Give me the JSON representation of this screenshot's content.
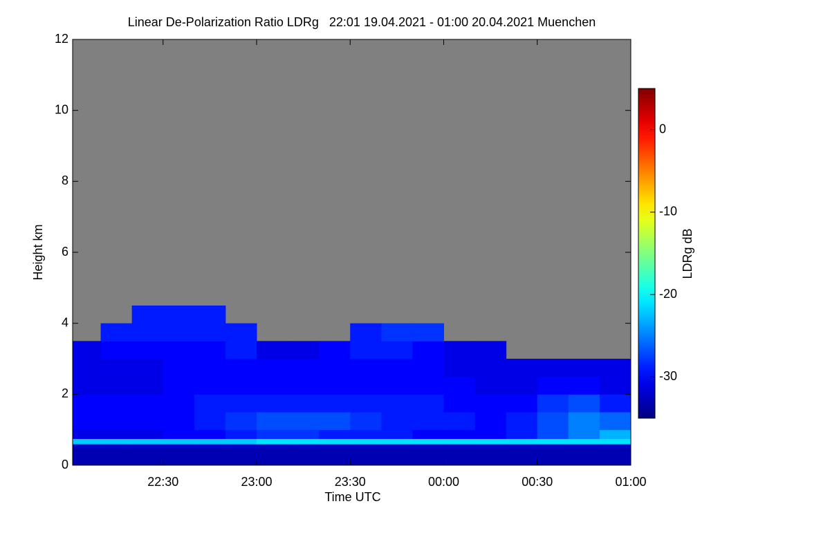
{
  "chart_data": {
    "type": "heatmap",
    "title": "Linear De-Polarization Ratio LDRg   22:01 19.04.2021 - 01:00 20.04.2021 Muenchen",
    "xlabel": "Time UTC",
    "ylabel": "Height km",
    "zlabel": "LDRg dB",
    "xlim": [
      1,
      180
    ],
    "xticks": [
      {
        "value": 30,
        "label": "22:30"
      },
      {
        "value": 60,
        "label": "23:00"
      },
      {
        "value": 90,
        "label": "23:30"
      },
      {
        "value": 120,
        "label": "00:00"
      },
      {
        "value": 150,
        "label": "00:30"
      },
      {
        "value": 180,
        "label": "01:00"
      }
    ],
    "ylim": [
      0,
      12
    ],
    "yticks": [
      0,
      2,
      4,
      6,
      8,
      10,
      12
    ],
    "zlim": [
      -35,
      5
    ],
    "zticks": [
      -30,
      -20,
      -10,
      0
    ],
    "colormap": "jet",
    "x_edges": [
      1,
      10,
      20,
      30,
      40,
      50,
      60,
      70,
      80,
      90,
      100,
      110,
      120,
      130,
      140,
      150,
      160,
      170,
      180
    ],
    "y_edges": [
      0,
      0.5,
      0.6,
      0.75,
      1,
      1.5,
      2,
      2.5,
      3,
      3.5,
      4,
      4.5
    ],
    "values": [
      [
        -33,
        -33,
        -33,
        -33,
        -33,
        -33,
        -33,
        -33,
        -33,
        -33,
        -33,
        -33,
        -33,
        -33,
        -33,
        -33,
        -33,
        -33
      ],
      [
        -32,
        -32,
        -32,
        -32,
        -32,
        -32,
        -32,
        -32,
        -32,
        -32,
        -32,
        -32,
        -32,
        -32,
        -32,
        -32,
        -32,
        -32
      ],
      [
        -22,
        -22,
        -22,
        -22,
        -22,
        -22,
        -21,
        -21,
        -21,
        -21,
        -21,
        -21,
        -21,
        -21,
        -21,
        -21,
        -21,
        -21
      ],
      [
        -31,
        -31,
        -31,
        -30,
        -30,
        -29,
        -28,
        -28,
        -29,
        -29,
        -29,
        -30,
        -30,
        -30,
        -29,
        -27,
        -25,
        -23
      ],
      [
        -30,
        -30,
        -30,
        -30,
        -29,
        -28,
        -27,
        -27,
        -27,
        -28,
        -29,
        -29,
        -29,
        -30,
        -29,
        -27,
        -25,
        -26
      ],
      [
        -30,
        -30,
        -30,
        -30,
        -29,
        -29,
        -29,
        -29,
        -29,
        -29,
        -29,
        -29,
        -30,
        -30,
        -30,
        -28,
        -27,
        -29
      ],
      [
        -31,
        -31,
        -31,
        -30,
        -30,
        -30,
        -30,
        -30,
        -30,
        -30,
        -30,
        -30,
        -30,
        -31,
        -31,
        -30,
        -30,
        -31
      ],
      [
        -31,
        -31,
        -31,
        -30,
        -30,
        -30,
        -30,
        -30,
        -30,
        -30,
        -30,
        -30,
        -31,
        -31,
        -31,
        -31,
        -31,
        -31
      ],
      [
        -31,
        -30,
        -30,
        -30,
        -30,
        -29,
        -31,
        -31,
        -30,
        -29,
        -29,
        -30,
        -31,
        -31,
        null,
        null,
        null,
        null
      ],
      [
        null,
        -29,
        -29,
        -29,
        -29,
        -29,
        null,
        null,
        null,
        -29,
        -28,
        -28,
        null,
        null,
        null,
        null,
        null,
        null
      ],
      [
        null,
        null,
        -29,
        -29,
        -29,
        null,
        null,
        null,
        null,
        null,
        null,
        null,
        null,
        null,
        null,
        null,
        null,
        null
      ]
    ]
  }
}
